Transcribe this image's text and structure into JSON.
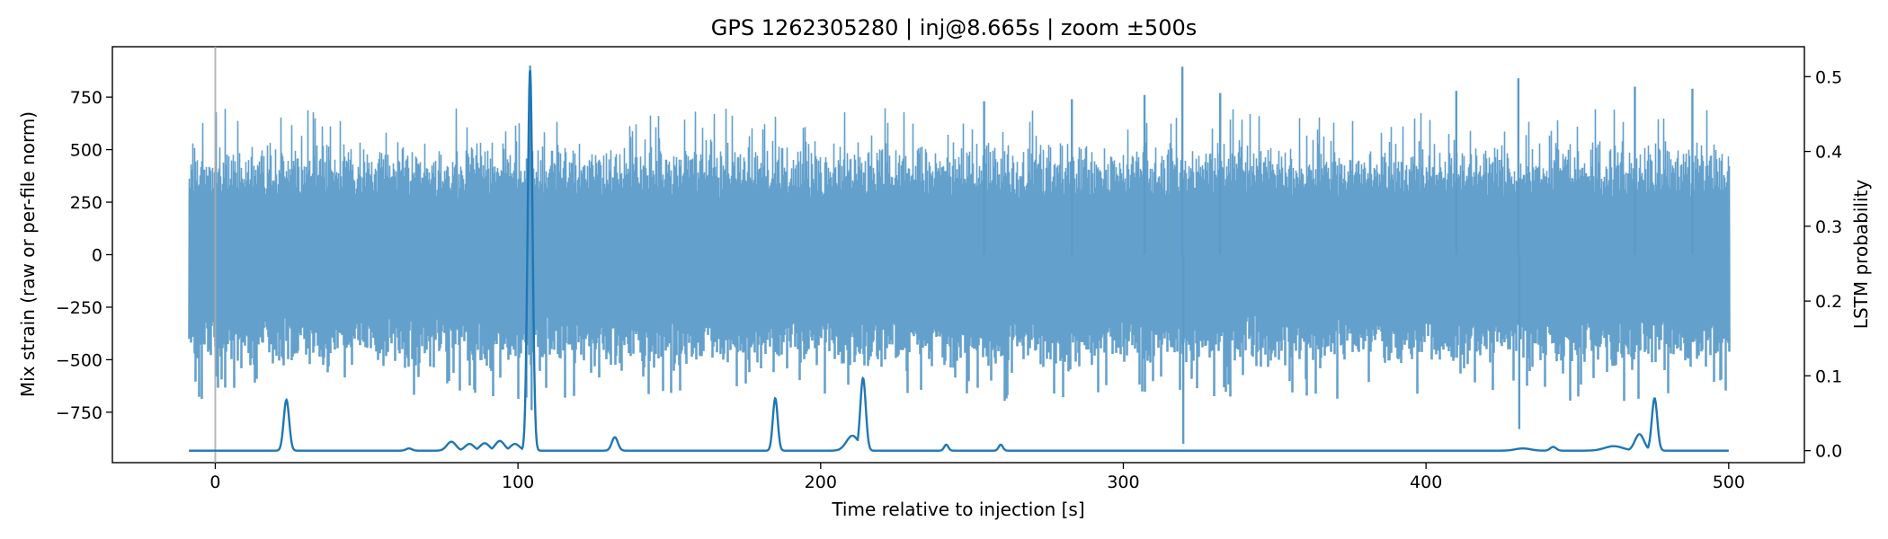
{
  "chart_data": {
    "type": "line",
    "title": "GPS 1262305280 | inj@8.665s | zoom ±500s",
    "xlabel": "Time relative to injection [s]",
    "ylabel_left": "Mix strain (raw or per-file norm)",
    "ylabel_right": "LSTM probability",
    "xlim": [
      -34,
      525
    ],
    "ylim_left": [
      -990,
      990
    ],
    "ylim_right": [
      -0.016,
      0.54
    ],
    "x_ticks": [
      0,
      100,
      200,
      300,
      400,
      500
    ],
    "x_tick_labels": [
      "0",
      "100",
      "200",
      "300",
      "400",
      "500"
    ],
    "y_left_ticks": [
      750,
      500,
      250,
      0,
      -250,
      -500,
      -750
    ],
    "y_left_tick_labels": [
      "750",
      "500",
      "250",
      "0",
      "−250",
      "−500",
      "−750"
    ],
    "y_right_ticks": [
      0.5,
      0.4,
      0.3,
      0.2,
      0.1,
      0.0
    ],
    "y_right_tick_labels": [
      "0.5",
      "0.4",
      "0.3",
      "0.2",
      "0.1",
      "0.0"
    ],
    "injection_marker_x": 0,
    "colors": {
      "strain": "#5b9bc9",
      "probability": "#1f77b4",
      "marker": "#aaaaaa"
    },
    "series": [
      {
        "axis": "left",
        "x_range": [
          -8.7,
          500
        ],
        "typical_amplitude": 420,
        "envelope_max": 700,
        "notes": "noisy strain trace, roughly symmetric about 0",
        "spikes": [
          {
            "x": 104,
            "y": 900
          },
          {
            "x": 104.5,
            "y": -740
          },
          {
            "x": 319.5,
            "y": 895
          },
          {
            "x": 319.8,
            "y": -900
          },
          {
            "x": 430.5,
            "y": 840
          },
          {
            "x": 430.8,
            "y": -830
          },
          {
            "x": 410,
            "y": 780
          },
          {
            "x": 469,
            "y": 800
          },
          {
            "x": 488,
            "y": 790
          },
          {
            "x": 332,
            "y": 770
          },
          {
            "x": 307,
            "y": 760
          },
          {
            "x": 254,
            "y": 730
          },
          {
            "x": 283,
            "y": 740
          }
        ]
      },
      {
        "axis": "right",
        "x_range": [
          -8.7,
          500
        ],
        "baseline": 0.0,
        "peaks": [
          {
            "x": 23.5,
            "y": 0.068,
            "w": 0.9
          },
          {
            "x": 64,
            "y": 0.003,
            "w": 1.0
          },
          {
            "x": 78,
            "y": 0.012,
            "w": 1.5
          },
          {
            "x": 84,
            "y": 0.009,
            "w": 1.5
          },
          {
            "x": 89,
            "y": 0.01,
            "w": 1.5
          },
          {
            "x": 94,
            "y": 0.013,
            "w": 1.5
          },
          {
            "x": 99,
            "y": 0.009,
            "w": 1.5
          },
          {
            "x": 104,
            "y": 0.51,
            "w": 0.8
          },
          {
            "x": 132,
            "y": 0.018,
            "w": 1.0
          },
          {
            "x": 185,
            "y": 0.07,
            "w": 0.8
          },
          {
            "x": 210.5,
            "y": 0.02,
            "w": 2.0
          },
          {
            "x": 214,
            "y": 0.097,
            "w": 0.9
          },
          {
            "x": 241.5,
            "y": 0.008,
            "w": 0.7
          },
          {
            "x": 259.5,
            "y": 0.008,
            "w": 0.7
          },
          {
            "x": 432,
            "y": 0.003,
            "w": 2.5
          },
          {
            "x": 442,
            "y": 0.005,
            "w": 1.0
          },
          {
            "x": 462,
            "y": 0.006,
            "w": 3.0
          },
          {
            "x": 470.5,
            "y": 0.022,
            "w": 1.5
          },
          {
            "x": 475.5,
            "y": 0.07,
            "w": 0.9
          }
        ]
      }
    ]
  }
}
